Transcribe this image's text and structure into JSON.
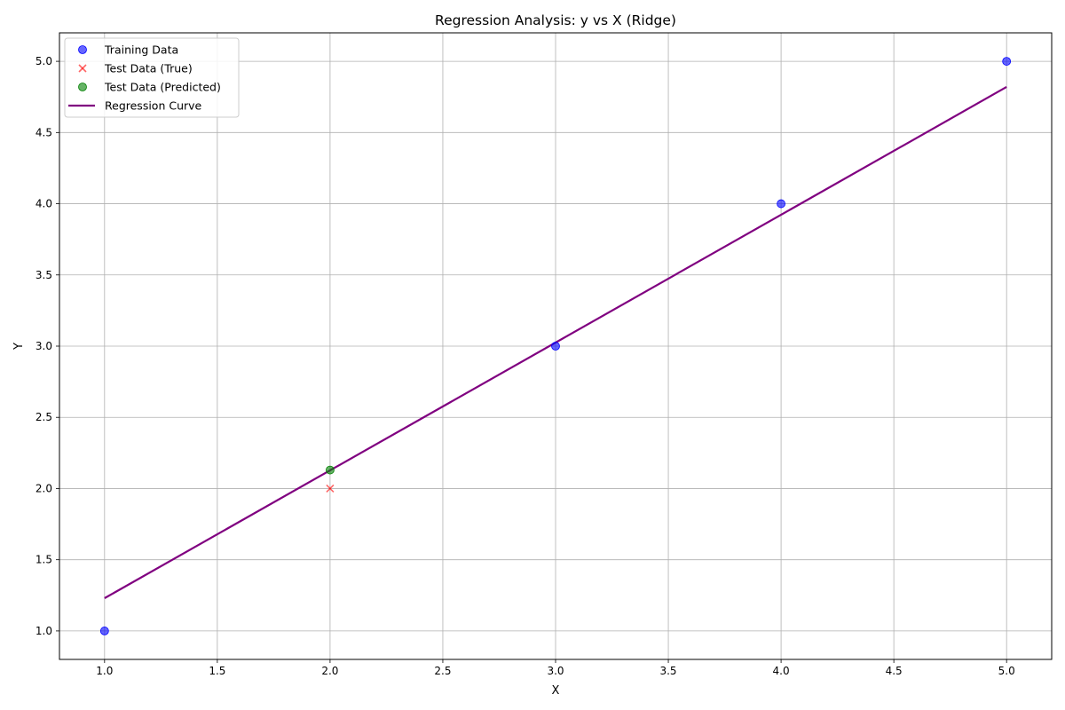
{
  "chart_data": {
    "type": "scatter",
    "title": "Regression Analysis: y vs X (Ridge)",
    "xlabel": "X",
    "ylabel": "Y",
    "xlim": [
      0.8,
      5.2
    ],
    "ylim": [
      0.8,
      5.2
    ],
    "xticks": [
      1.0,
      1.5,
      2.0,
      2.5,
      3.0,
      3.5,
      4.0,
      4.5,
      5.0
    ],
    "yticks": [
      1.0,
      1.5,
      2.0,
      2.5,
      3.0,
      3.5,
      4.0,
      4.5,
      5.0
    ],
    "grid": true,
    "legend_position": "upper-left",
    "series": [
      {
        "name": "Training Data",
        "kind": "scatter",
        "marker": "circle",
        "color": "#0000ff",
        "points": [
          [
            1,
            1
          ],
          [
            3,
            3
          ],
          [
            4,
            4
          ],
          [
            5,
            5
          ]
        ]
      },
      {
        "name": "Test Data (True)",
        "kind": "scatter",
        "marker": "x",
        "color": "#ff0000",
        "points": [
          [
            2,
            2
          ]
        ]
      },
      {
        "name": "Test Data (Predicted)",
        "kind": "scatter",
        "marker": "circle",
        "color": "#008000",
        "points": [
          [
            2,
            2.13
          ]
        ]
      },
      {
        "name": "Regression Curve",
        "kind": "line",
        "color": "#800080",
        "points": [
          [
            1,
            1.23
          ],
          [
            5,
            4.82
          ]
        ]
      }
    ]
  }
}
